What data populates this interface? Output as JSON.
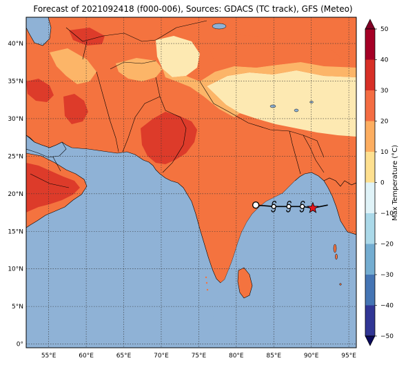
{
  "title": "Forecast of 2021092418 (f000-006), Sources: GDACS (TC track), GFS (Meteo)",
  "map": {
    "lon_range": [
      52,
      96
    ],
    "lat_range": [
      -0.5,
      43.5
    ],
    "x_ticks": [
      "55°E",
      "60°E",
      "65°E",
      "70°E",
      "75°E",
      "80°E",
      "85°E",
      "90°E",
      "95°E"
    ],
    "y_ticks": [
      "0°",
      "5°N",
      "10°N",
      "15°N",
      "20°N",
      "25°N",
      "30°N",
      "35°N",
      "40°N"
    ],
    "grid": "dotted"
  },
  "colorbar": {
    "label": "Max Temperature (°C)",
    "ticks": [
      "50",
      "40",
      "30",
      "20",
      "10",
      "0",
      "−10",
      "−20",
      "−30",
      "−40",
      "−50"
    ]
  },
  "storm_track": {
    "points": [
      {
        "lon": 82.6,
        "lat": 18.5,
        "marker": "circle"
      },
      {
        "lon": 85.0,
        "lat": 18.3,
        "marker": "cyclone"
      },
      {
        "lon": 87.0,
        "lat": 18.3,
        "marker": "cyclone"
      },
      {
        "lon": 88.8,
        "lat": 18.3,
        "marker": "cyclone"
      },
      {
        "lon": 90.2,
        "lat": 18.1,
        "marker": "star"
      },
      {
        "lon": 92.2,
        "lat": 18.5,
        "marker": "none"
      }
    ]
  }
}
